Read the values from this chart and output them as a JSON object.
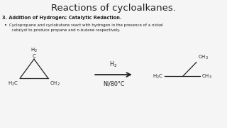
{
  "title": "Reactions of cycloalkanes.",
  "section_header": "3. Addition of Hydrogen; Catalytic Redaction.",
  "bullet_text": "Cyclopropane and cyclobutane react with hydrogen in the presence of a nickel\n  catalyst to produce propane and n-butane respectively.",
  "bg_color": "#f5f5f5",
  "text_color": "#222222",
  "line_color": "#222222",
  "font_size_title": 9.5,
  "font_size_section": 4.8,
  "font_size_bullet": 4.0,
  "font_size_chem": 5.0,
  "font_size_reagent": 5.8
}
